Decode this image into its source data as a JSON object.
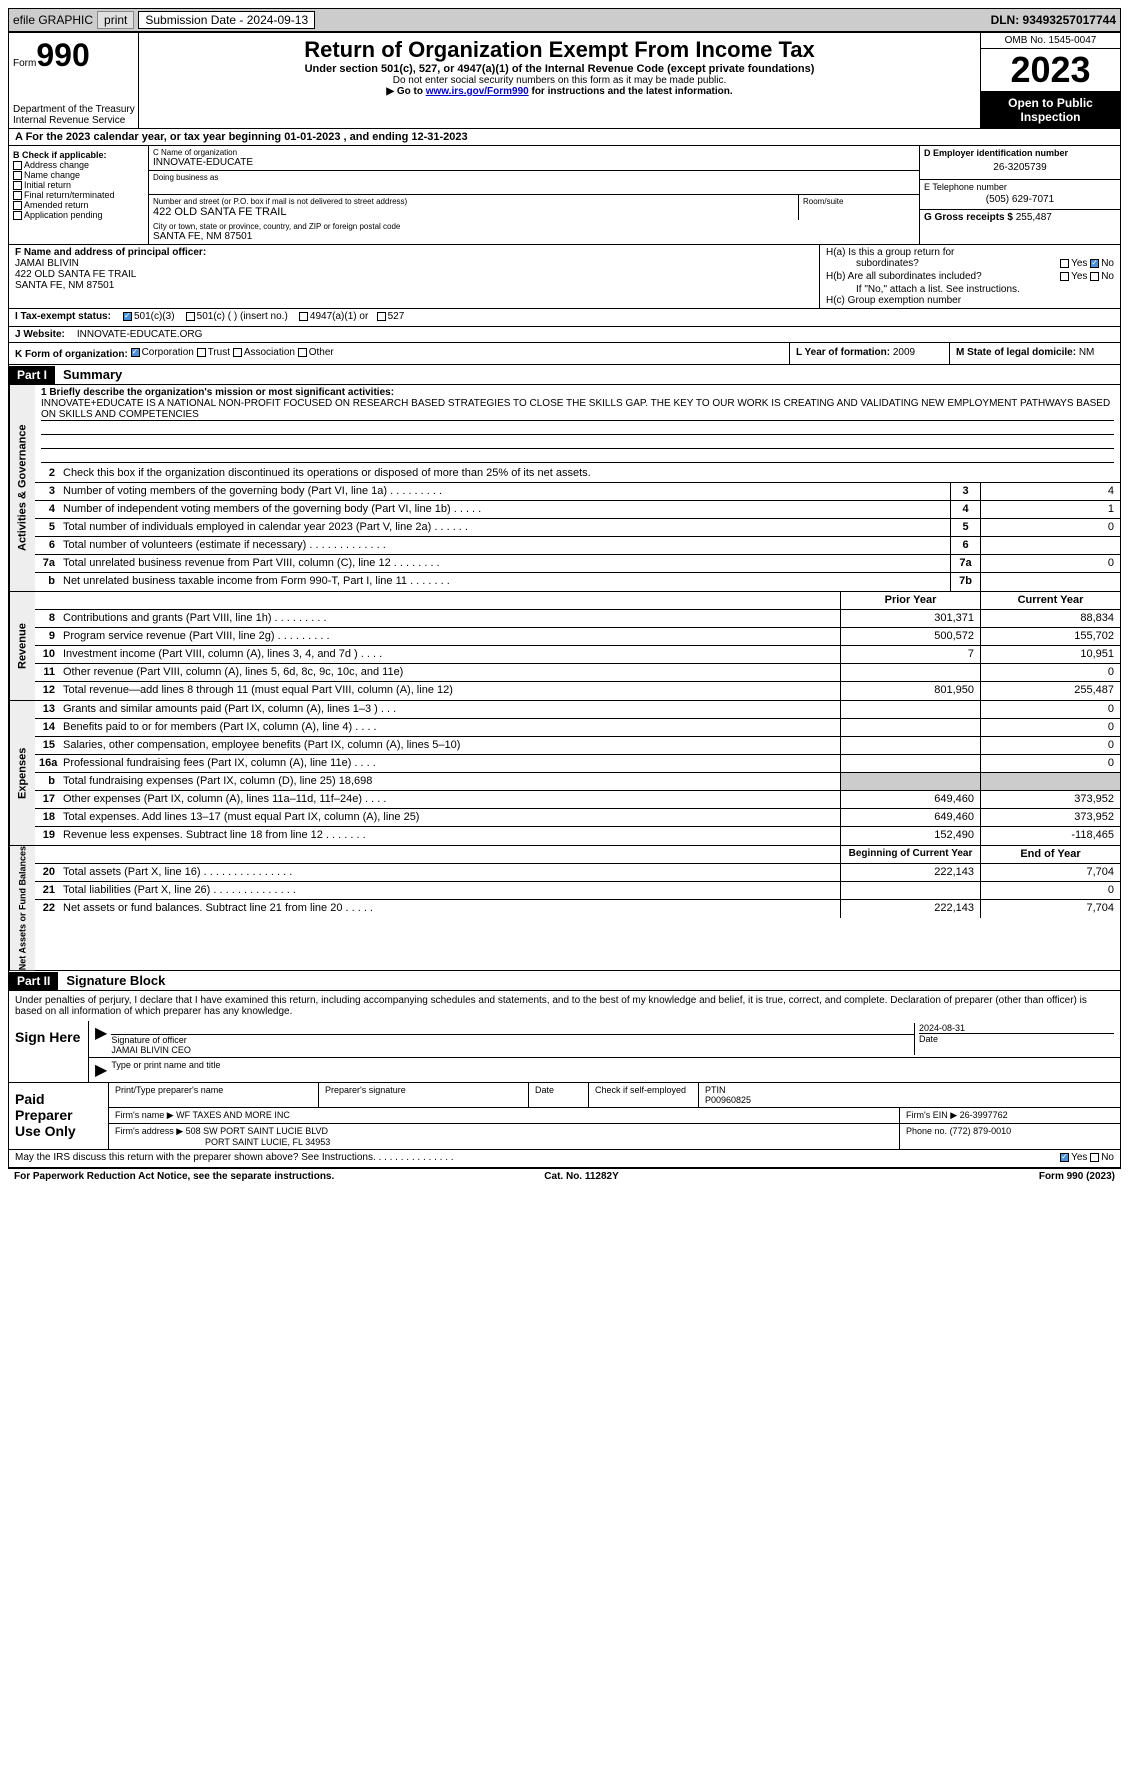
{
  "topbar": {
    "efile": "efile GRAPHIC",
    "print": "print",
    "submission_label": "Submission Date - 2024-09-13",
    "dln_label": "DLN: 93493257017744"
  },
  "header": {
    "form_label": "Form",
    "form_num": "990",
    "dept": "Department of the Treasury",
    "irs": "Internal Revenue Service",
    "title": "Return of Organization Exempt From Income Tax",
    "subtitle": "Under section 501(c), 527, or 4947(a)(1) of the Internal Revenue Code (except private foundations)",
    "warn": "Do not enter social security numbers on this form as it may be made public.",
    "goto_pre": "Go to ",
    "goto_link": "www.irs.gov/Form990",
    "goto_post": " for instructions and the latest information.",
    "omb": "OMB No. 1545-0047",
    "year": "2023",
    "open": "Open to Public Inspection"
  },
  "row_a": "A  For the 2023 calendar year, or tax year beginning 01-01-2023    , and ending 12-31-2023",
  "box_b": {
    "title": "B Check if applicable:",
    "items": [
      "Address change",
      "Name change",
      "Initial return",
      "Final return/terminated",
      "Amended return",
      "Application pending"
    ]
  },
  "box_c": {
    "name_lbl": "C Name of organization",
    "name": "INNOVATE-EDUCATE",
    "dba_lbl": "Doing business as",
    "addr_lbl": "Number and street (or P.O. box if mail is not delivered to street address)",
    "addr": "422 OLD SANTA FE TRAIL",
    "room_lbl": "Room/suite",
    "city_lbl": "City or town, state or province, country, and ZIP or foreign postal code",
    "city": "SANTA FE, NM   87501"
  },
  "box_d": {
    "ein_lbl": "D Employer identification number",
    "ein": "26-3205739",
    "tel_lbl": "E Telephone number",
    "tel": "(505) 629-7071",
    "gross_lbl": "G Gross receipts $",
    "gross": "255,487"
  },
  "box_f": {
    "lbl": "F  Name and address of principal officer:",
    "name": "JAMAI BLIVIN",
    "addr1": "422 OLD SANTA FE TRAIL",
    "addr2": "SANTA FE, NM   87501"
  },
  "box_h": {
    "ha": "H(a)  Is this a group return for",
    "ha2": "subordinates?",
    "hb": "H(b)  Are all subordinates included?",
    "hb2": "If \"No,\" attach a list. See instructions.",
    "hc": "H(c)  Group exemption number ",
    "yes": "Yes",
    "no": "No"
  },
  "row_i": {
    "lbl": "I    Tax-exempt status:",
    "o1": "501(c)(3)",
    "o2": "501(c) (  ) (insert no.)",
    "o3": "4947(a)(1) or",
    "o4": "527"
  },
  "row_j": {
    "lbl": "J    Website: ",
    "val": "INNOVATE-EDUCATE.ORG"
  },
  "row_k": {
    "lbl": "K Form of organization:",
    "o1": "Corporation",
    "o2": "Trust",
    "o3": "Association",
    "o4": "Other",
    "l_lbl": "L Year of formation:",
    "l_val": "2009",
    "m_lbl": "M State of legal domicile:",
    "m_val": "NM"
  },
  "part1": {
    "hdr": "Part I",
    "title": "Summary"
  },
  "mission": {
    "lbl": "1   Briefly describe the organization's mission or most significant activities:",
    "text": "INNOVATE+EDUCATE IS A NATIONAL NON-PROFIT FOCUSED ON RESEARCH BASED STRATEGIES TO CLOSE THE SKILLS GAP. THE KEY TO OUR WORK IS CREATING AND VALIDATING NEW EMPLOYMENT PATHWAYS BASED ON SKILLS AND COMPETENCIES"
  },
  "line2": "Check this box      if the organization discontinued its operations or disposed of more than 25% of its net assets.",
  "side_labels": {
    "gov": "Activities & Governance",
    "rev": "Revenue",
    "exp": "Expenses",
    "net": "Net Assets or Fund Balances"
  },
  "gov_lines": [
    {
      "n": "3",
      "d": "Number of voting members of the governing body (Part VI, line 1a)    .    .    .    .    .    .    .    .    .",
      "b": "3",
      "v": "4"
    },
    {
      "n": "4",
      "d": "Number of independent voting members of the governing body (Part VI, line 1b)    .    .    .    .    .",
      "b": "4",
      "v": "1"
    },
    {
      "n": "5",
      "d": "Total number of individuals employed in calendar year 2023 (Part V, line 2a)    .    .    .    .    .    .",
      "b": "5",
      "v": "0"
    },
    {
      "n": "6",
      "d": "Total number of volunteers (estimate if necessary)    .    .    .    .    .    .    .    .    .    .    .    .    .",
      "b": "6",
      "v": ""
    },
    {
      "n": "7a",
      "d": "Total unrelated business revenue from Part VIII, column (C), line 12    .    .    .    .    .    .    .    .",
      "b": "7a",
      "v": "0"
    },
    {
      "n": "b",
      "d": "Net unrelated business taxable income from Form 990-T, Part I, line 11    .    .    .    .    .    .    .",
      "b": "7b",
      "v": ""
    }
  ],
  "col_hdrs": {
    "prior": "Prior Year",
    "current": "Current Year",
    "begin": "Beginning of Current Year",
    "end": "End of Year"
  },
  "rev_lines": [
    {
      "n": "8",
      "d": "Contributions and grants (Part VIII, line 1h)    .    .    .    .    .    .    .    .    .",
      "p": "301,371",
      "c": "88,834"
    },
    {
      "n": "9",
      "d": "Program service revenue (Part VIII, line 2g)    .    .    .    .    .    .    .    .    .",
      "p": "500,572",
      "c": "155,702"
    },
    {
      "n": "10",
      "d": "Investment income (Part VIII, column (A), lines 3, 4, and 7d )    .    .    .    .",
      "p": "7",
      "c": "10,951"
    },
    {
      "n": "11",
      "d": "Other revenue (Part VIII, column (A), lines 5, 6d, 8c, 9c, 10c, and 11e)",
      "p": "",
      "c": "0"
    },
    {
      "n": "12",
      "d": "Total revenue—add lines 8 through 11 (must equal Part VIII, column (A), line 12)",
      "p": "801,950",
      "c": "255,487"
    }
  ],
  "exp_lines": [
    {
      "n": "13",
      "d": "Grants and similar amounts paid (Part IX, column (A), lines 1–3 )   .    .    .",
      "p": "",
      "c": "0"
    },
    {
      "n": "14",
      "d": "Benefits paid to or for members (Part IX, column (A), line 4)    .    .    .    .",
      "p": "",
      "c": "0"
    },
    {
      "n": "15",
      "d": "Salaries, other compensation, employee benefits (Part IX, column (A), lines 5–10)",
      "p": "",
      "c": "0"
    },
    {
      "n": "16a",
      "d": "Professional fundraising fees (Part IX, column (A), line 11e)    .    .    .    .",
      "p": "",
      "c": "0"
    },
    {
      "n": "b",
      "d": "Total fundraising expenses (Part IX, column (D), line 25) 18,698",
      "p": "shade",
      "c": "shade"
    },
    {
      "n": "17",
      "d": "Other expenses (Part IX, column (A), lines 11a–11d, 11f–24e)    .    .    .    .",
      "p": "649,460",
      "c": "373,952"
    },
    {
      "n": "18",
      "d": "Total expenses. Add lines 13–17 (must equal Part IX, column (A), line 25)",
      "p": "649,460",
      "c": "373,952"
    },
    {
      "n": "19",
      "d": "Revenue less expenses. Subtract line 18 from line 12    .    .    .    .    .    .    .",
      "p": "152,490",
      "c": "-118,465"
    }
  ],
  "net_lines": [
    {
      "n": "20",
      "d": "Total assets (Part X, line 16)    .    .    .    .    .    .    .    .    .    .    .    .    .    .    .",
      "p": "222,143",
      "c": "7,704"
    },
    {
      "n": "21",
      "d": "Total liabilities (Part X, line 26)    .    .    .    .    .    .    .    .    .    .    .    .    .    .",
      "p": "",
      "c": "0"
    },
    {
      "n": "22",
      "d": "Net assets or fund balances. Subtract line 21 from line 20    .    .    .    .    .",
      "p": "222,143",
      "c": "7,704"
    }
  ],
  "part2": {
    "hdr": "Part II",
    "title": "Signature Block"
  },
  "sig": {
    "decl": "Under penalties of perjury, I declare that I have examined this return, including accompanying schedules and statements, and to the best of my knowledge and belief, it is true, correct, and complete. Declaration of preparer (other than officer) is based on all information of which preparer has any knowledge.",
    "sign_here": "Sign Here",
    "sig_of": "Signature of officer",
    "name": "JAMAI BLIVIN  CEO",
    "type_lbl": "Type or print name and title",
    "date_lbl": "Date",
    "date": "2024-08-31"
  },
  "prep": {
    "title": "Paid Preparer Use Only",
    "print_lbl": "Print/Type preparer's name",
    "sig_lbl": "Preparer's signature",
    "date_lbl": "Date",
    "check_lbl": "Check       if self-employed",
    "ptin_lbl": "PTIN",
    "ptin": "P00960825",
    "firm_name_lbl": "Firm's name    ",
    "firm_name": "WF TAXES AND MORE INC",
    "firm_ein_lbl": "Firm's EIN  ",
    "firm_ein": "26-3997762",
    "firm_addr_lbl": "Firm's address ",
    "firm_addr1": "508 SW PORT SAINT LUCIE BLVD",
    "firm_addr2": "PORT SAINT LUCIE, FL   34953",
    "phone_lbl": "Phone no.",
    "phone": "(772) 879-0010"
  },
  "foot": {
    "discuss": "May the IRS discuss this return with the preparer shown above? See Instructions.    .    .    .    .    .    .    .    .    .    .    .    .    .    .",
    "yes": "Yes",
    "no": "No",
    "paperwork": "For Paperwork Reduction Act Notice, see the separate instructions.",
    "cat": "Cat. No. 11282Y",
    "form": "Form 990 (2023)"
  }
}
